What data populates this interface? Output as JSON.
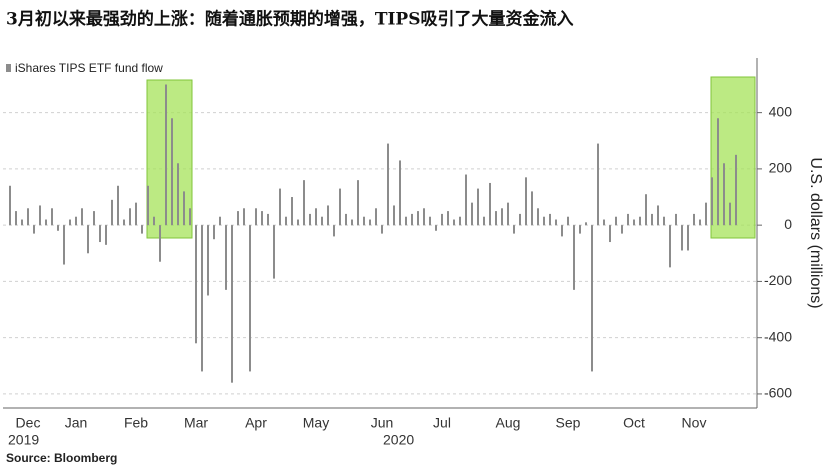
{
  "title": "3月初以来最强劲的上涨：随着通胀预期的增强，TIPS吸引了大量资金流入",
  "source": "Source: Bloomberg",
  "chart_data": {
    "type": "bar",
    "legend": "iShares TIPS ETF fund flow",
    "y_axis_label": "U.S. dollars (millions)",
    "year_labels": [
      "2019",
      "2020"
    ],
    "color": "#8c8c8c",
    "grid": true,
    "ylim": [
      -650,
      580
    ],
    "yticks": [
      -600,
      -400,
      -200,
      0,
      200,
      400
    ],
    "categories": [
      null,
      null,
      null,
      "Dec",
      null,
      null,
      null,
      null,
      null,
      null,
      null,
      "Jan",
      null,
      null,
      null,
      null,
      null,
      null,
      null,
      null,
      null,
      "Feb",
      null,
      null,
      null,
      null,
      null,
      null,
      null,
      null,
      null,
      "Mar",
      null,
      null,
      null,
      null,
      null,
      null,
      null,
      null,
      null,
      "Apr",
      null,
      null,
      null,
      null,
      null,
      null,
      null,
      null,
      null,
      "May",
      null,
      null,
      null,
      null,
      null,
      null,
      null,
      null,
      null,
      null,
      "Jun",
      null,
      null,
      null,
      null,
      null,
      null,
      null,
      null,
      null,
      "Jul",
      null,
      null,
      null,
      null,
      null,
      null,
      null,
      null,
      null,
      null,
      "Aug",
      null,
      null,
      null,
      null,
      null,
      null,
      null,
      null,
      null,
      "Sep",
      null,
      null,
      null,
      null,
      null,
      null,
      null,
      null,
      null,
      null,
      "Oct",
      null,
      null,
      null,
      null,
      null,
      null,
      null,
      null,
      null,
      "Nov",
      null,
      null,
      null,
      null,
      null,
      null,
      null
    ],
    "values": [
      140,
      50,
      20,
      60,
      -30,
      70,
      20,
      60,
      -20,
      -140,
      20,
      30,
      60,
      -100,
      50,
      -60,
      -70,
      90,
      140,
      20,
      60,
      80,
      -30,
      140,
      30,
      -130,
      500,
      380,
      220,
      120,
      60,
      -420,
      -520,
      -250,
      -50,
      30,
      -230,
      -560,
      50,
      60,
      -520,
      60,
      50,
      40,
      -190,
      130,
      30,
      100,
      20,
      160,
      40,
      60,
      30,
      70,
      -40,
      130,
      40,
      20,
      160,
      30,
      20,
      60,
      -30,
      290,
      70,
      230,
      30,
      40,
      50,
      60,
      30,
      -20,
      40,
      50,
      20,
      30,
      180,
      80,
      130,
      30,
      150,
      50,
      60,
      80,
      -30,
      40,
      170,
      120,
      60,
      30,
      40,
      20,
      -40,
      30,
      -230,
      -30,
      10,
      -520,
      290,
      20,
      -60,
      30,
      -30,
      40,
      20,
      30,
      110,
      40,
      70,
      30,
      -150,
      40,
      -90,
      -90,
      40,
      20,
      80,
      170,
      380,
      220,
      80,
      250
    ]
  }
}
